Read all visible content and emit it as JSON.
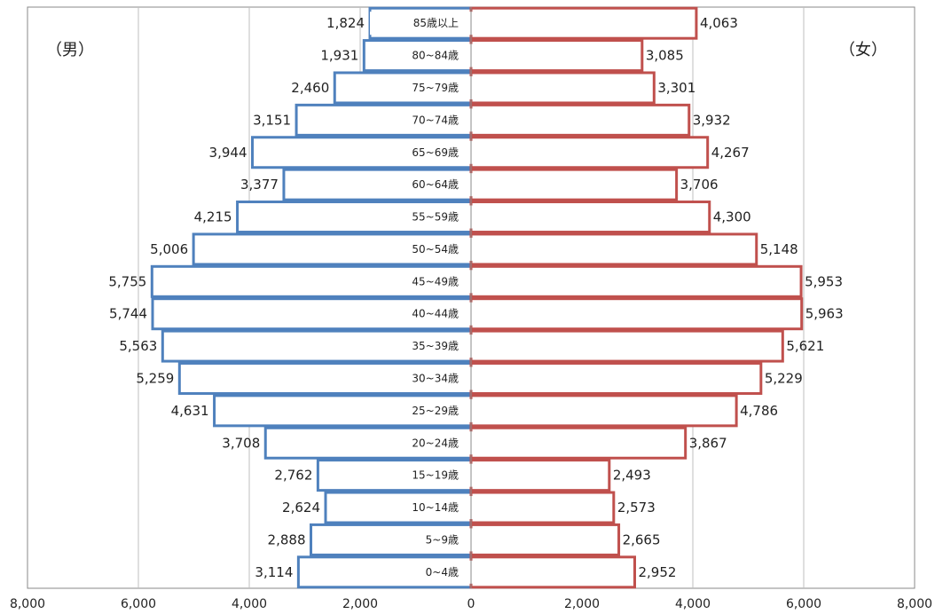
{
  "chart_data": {
    "type": "bar",
    "orientation": "horizontal",
    "subtype": "population-pyramid",
    "categories": [
      "85歳以上",
      "80~84歳",
      "75~79歳",
      "70~74歳",
      "65~69歳",
      "60~64歳",
      "55~59歳",
      "50~54歳",
      "45~49歳",
      "40~44歳",
      "35~39歳",
      "30~34歳",
      "25~29歳",
      "20~24歳",
      "15~19歳",
      "10~14歳",
      "5~9歳",
      "0~4歳"
    ],
    "series": [
      {
        "name": "（男）",
        "side": "left",
        "color": "#4f81bd",
        "values": [
          1824,
          1931,
          2460,
          3151,
          3944,
          3377,
          4215,
          5006,
          5755,
          5744,
          5563,
          5259,
          4631,
          3708,
          2762,
          2624,
          2888,
          3114
        ],
        "labels": [
          "1,824",
          "1,931",
          "2,460",
          "3,151",
          "3,944",
          "3,377",
          "4,215",
          "5,006",
          "5,755",
          "5,744",
          "5,563",
          "5,259",
          "4,631",
          "3,708",
          "2,762",
          "2,624",
          "2,888",
          "3,114"
        ]
      },
      {
        "name": "（女）",
        "side": "right",
        "color": "#c0504d",
        "values": [
          4063,
          3085,
          3301,
          3932,
          4267,
          3706,
          4300,
          5148,
          5953,
          5963,
          5621,
          5229,
          4786,
          3867,
          2493,
          2573,
          2665,
          2952
        ],
        "labels": [
          "4,063",
          "3,085",
          "3,301",
          "3,932",
          "4,267",
          "3,706",
          "4,300",
          "5,148",
          "5,953",
          "5,963",
          "5,621",
          "5,229",
          "4,786",
          "3,867",
          "2,493",
          "2,573",
          "2,665",
          "2,952"
        ]
      }
    ],
    "xlim": [
      -8000,
      8000
    ],
    "xticks": [
      -8000,
      -6000,
      -4000,
      -2000,
      0,
      2000,
      4000,
      6000,
      8000
    ],
    "xtick_labels": [
      "8,000",
      "6,000",
      "4,000",
      "2,000",
      "0",
      "2,000",
      "4,000",
      "6,000",
      "8,000"
    ],
    "grid": true,
    "grid_color": "#bfbfbf",
    "axis_color": "#888888"
  }
}
